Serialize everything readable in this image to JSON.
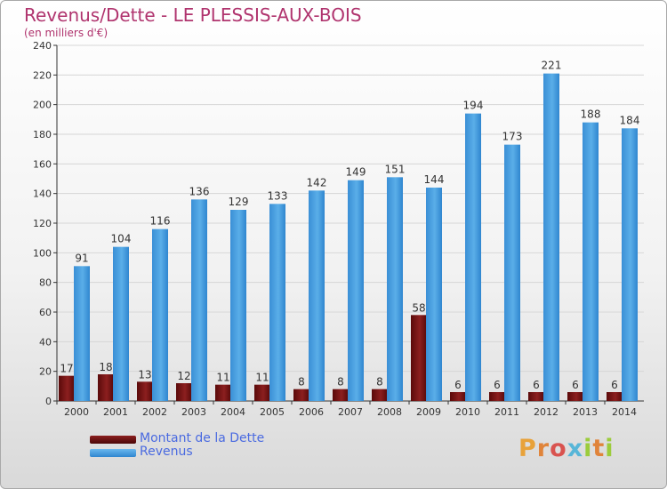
{
  "header": {
    "title": "Revenus/Dette - LE PLESSIS-AUX-BOIS",
    "subtitle": "(en milliers d'€)"
  },
  "legend": {
    "items": [
      {
        "label": "Montant de la Dette",
        "color": "#6b0e0e"
      },
      {
        "label": "Revenus",
        "color": "#3d94dc"
      }
    ]
  },
  "logo": {
    "text": "Proxiti",
    "letter_colors": [
      "#e8a23a",
      "#e0843a",
      "#d9534f",
      "#57b6d8",
      "#9ccc3c",
      "#e0843a",
      "#9ccc3c"
    ]
  },
  "chart_data": {
    "type": "bar",
    "title": "Revenus/Dette - LE PLESSIS-AUX-BOIS",
    "subtitle": "(en milliers d'€)",
    "categories": [
      "2000",
      "2001",
      "2002",
      "2003",
      "2004",
      "2005",
      "2006",
      "2007",
      "2008",
      "2009",
      "2010",
      "2011",
      "2012",
      "2013",
      "2014"
    ],
    "series": [
      {
        "name": "Montant de la Dette",
        "color": "#7a1414",
        "values": [
          17,
          18,
          13,
          12,
          11,
          11,
          8,
          8,
          8,
          58,
          6,
          6,
          6,
          6,
          6
        ]
      },
      {
        "name": "Revenus",
        "color": "#3d94dc",
        "values": [
          91,
          104,
          116,
          136,
          129,
          133,
          142,
          149,
          151,
          144,
          194,
          173,
          221,
          188,
          184
        ]
      }
    ],
    "yticks": [
      0,
      20,
      40,
      60,
      80,
      100,
      120,
      140,
      160,
      180,
      200,
      220,
      240
    ],
    "ylim": [
      0,
      240
    ],
    "grid": true,
    "legend_position": "bottom-left"
  }
}
